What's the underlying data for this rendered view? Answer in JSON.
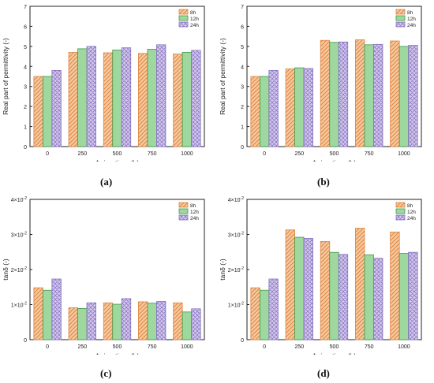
{
  "chart_data": [
    {
      "type": "bar",
      "panel_label": "(a)",
      "categories": [
        "0",
        "250",
        "500",
        "750",
        "1000"
      ],
      "series": [
        {
          "name": "8h",
          "values": [
            3.5,
            4.7,
            4.68,
            4.65,
            4.62
          ]
        },
        {
          "name": "12h",
          "values": [
            3.5,
            4.88,
            4.82,
            4.86,
            4.7
          ]
        },
        {
          "name": "24h",
          "values": [
            3.8,
            5.0,
            4.93,
            5.08,
            4.8
          ]
        }
      ],
      "xlabel": "Aging time (h)",
      "ylabel": "Real part of permittivity  (-)",
      "ylim": [
        0,
        7
      ],
      "yticks": [
        "0",
        "1",
        "2",
        "3",
        "4",
        "5",
        "6",
        "7"
      ],
      "legend": "top-right",
      "grid": false
    },
    {
      "type": "bar",
      "panel_label": "(b)",
      "categories": [
        "0",
        "250",
        "500",
        "750",
        "1000"
      ],
      "series": [
        {
          "name": "8h",
          "values": [
            3.5,
            3.88,
            5.3,
            5.33,
            5.27
          ]
        },
        {
          "name": "12h",
          "values": [
            3.5,
            3.93,
            5.2,
            5.08,
            5.0
          ]
        },
        {
          "name": "24h",
          "values": [
            3.8,
            3.9,
            5.22,
            5.1,
            5.05
          ]
        }
      ],
      "xlabel": "Aging time (h)",
      "ylabel": "Real part of permittivity  (-)",
      "ylim": [
        0,
        7
      ],
      "yticks": [
        "0",
        "1",
        "2",
        "3",
        "4",
        "5",
        "6",
        "7"
      ],
      "legend": "top-right",
      "grid": false
    },
    {
      "type": "bar",
      "panel_label": "(c)",
      "categories": [
        "0",
        "250",
        "500",
        "750",
        "1000"
      ],
      "series": [
        {
          "name": "8h",
          "values": [
            0.0148,
            0.0091,
            0.0105,
            0.0108,
            0.0105
          ]
        },
        {
          "name": "12h",
          "values": [
            0.0141,
            0.0089,
            0.0101,
            0.0104,
            0.0079
          ]
        },
        {
          "name": "24h",
          "values": [
            0.0173,
            0.0105,
            0.0117,
            0.0109,
            0.0088
          ]
        }
      ],
      "xlabel": "Aging time (h)",
      "ylabel": "tanδ  (-)",
      "ylim": [
        0,
        0.04
      ],
      "yticks": [
        {
          "base": "0",
          "exp": ""
        },
        {
          "base": "1×10",
          "exp": "-2"
        },
        {
          "base": "2×10",
          "exp": "-2"
        },
        {
          "base": "3×10",
          "exp": "-2"
        },
        {
          "base": "4×10",
          "exp": "-2"
        }
      ],
      "legend": "top-right",
      "grid": false
    },
    {
      "type": "bar",
      "panel_label": "(d)",
      "categories": [
        "0",
        "250",
        "500",
        "750",
        "1000"
      ],
      "series": [
        {
          "name": "8h",
          "values": [
            0.0148,
            0.0313,
            0.028,
            0.0318,
            0.0307
          ]
        },
        {
          "name": "12h",
          "values": [
            0.0141,
            0.0292,
            0.0249,
            0.0242,
            0.0246
          ]
        },
        {
          "name": "24h",
          "values": [
            0.0173,
            0.0289,
            0.0243,
            0.0232,
            0.0249
          ]
        }
      ],
      "xlabel": "Aging time (h)",
      "ylabel": "tanδ  (-)",
      "ylim": [
        0,
        0.04
      ],
      "yticks": [
        {
          "base": "0",
          "exp": ""
        },
        {
          "base": "1×10",
          "exp": "-2"
        },
        {
          "base": "2×10",
          "exp": "-2"
        },
        {
          "base": "3×10",
          "exp": "-2"
        },
        {
          "base": "4×10",
          "exp": "-2"
        }
      ],
      "legend": "top-right",
      "grid": false
    }
  ],
  "colors": {
    "8h": {
      "fill": "#f5c9a0",
      "stroke": "#e0843e"
    },
    "12h": {
      "fill": "#9fd89f",
      "stroke": "#3f9a48"
    },
    "24h": {
      "fill": "#d4c8ec",
      "stroke": "#8470c0"
    }
  }
}
